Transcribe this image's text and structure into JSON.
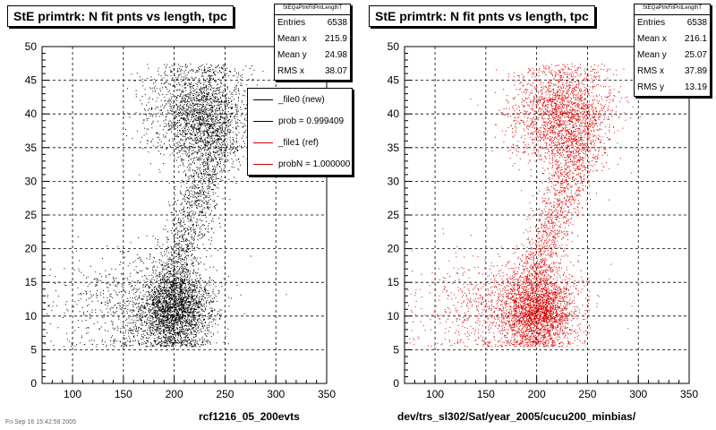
{
  "chart_data": [
    {
      "type": "scatter",
      "title": "StE primtrk: N fit pnts vs length, tpc",
      "xlabel": "rcf1216_05_200evts",
      "ylabel": "",
      "xlim": [
        70,
        350
      ],
      "ylim": [
        0,
        50
      ],
      "x_ticks": [
        100,
        150,
        200,
        250,
        300,
        350
      ],
      "y_ticks": [
        0,
        5,
        10,
        15,
        20,
        25,
        30,
        35,
        40,
        45,
        50
      ],
      "grid": true,
      "marker_color": "#000000",
      "stats": {
        "name": "StEQaPtrkFitPntLengthT",
        "rows": [
          {
            "label": "Entries",
            "value": "6538"
          },
          {
            "label": "Mean x",
            "value": "215.9"
          },
          {
            "label": "Mean y",
            "value": "24.98"
          },
          {
            "label": "RMS x",
            "value": "38.07"
          }
        ]
      },
      "legend": {
        "placement": "top-right",
        "entries": [
          {
            "label": "_file0 (new)",
            "color": "#000000"
          },
          {
            "label": "prob = 0.999409",
            "color": "#000000"
          },
          {
            "label": "_file1 (ref)",
            "color": "#cc0000"
          },
          {
            "label": "probN = 1.000000",
            "color": "#cc0000"
          }
        ]
      }
    },
    {
      "type": "scatter",
      "title": "StE primtrk: N fit pnts vs length, tpc",
      "xlabel": "dev/trs_sl302/Sat/year_2005/cucu200_minbias/",
      "ylabel": "",
      "xlim": [
        70,
        350
      ],
      "ylim": [
        0,
        50
      ],
      "x_ticks": [
        100,
        150,
        200,
        250,
        300,
        350
      ],
      "y_ticks": [
        0,
        5,
        10,
        15,
        20,
        25,
        30,
        35,
        40,
        45,
        50
      ],
      "grid": true,
      "marker_color": "#dd0000",
      "stats": {
        "name": "StEQaPtrkFitPntLengthT",
        "rows": [
          {
            "label": "Entries",
            "value": "6538"
          },
          {
            "label": "Mean x",
            "value": "216.1"
          },
          {
            "label": "Mean y",
            "value": "25.07"
          },
          {
            "label": "RMS x",
            "value": "37.89"
          },
          {
            "label": "RMS y",
            "value": "13.19"
          }
        ]
      }
    }
  ],
  "footer": "Fri Sep 16 15:42:59 2005"
}
